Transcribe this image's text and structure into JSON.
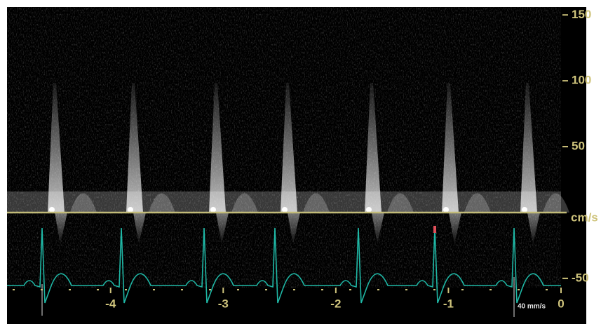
{
  "chart_data": {
    "type": "doppler",
    "y_unit": "cm/s",
    "sweep_speed": "40 mm/s",
    "ylim": [
      -57,
      156
    ],
    "yticks": [
      -50,
      50,
      100,
      150
    ],
    "xlim": [
      -4.92,
      0
    ],
    "xticks": [
      -4,
      -3,
      -2,
      -1,
      0
    ]
  }
}
